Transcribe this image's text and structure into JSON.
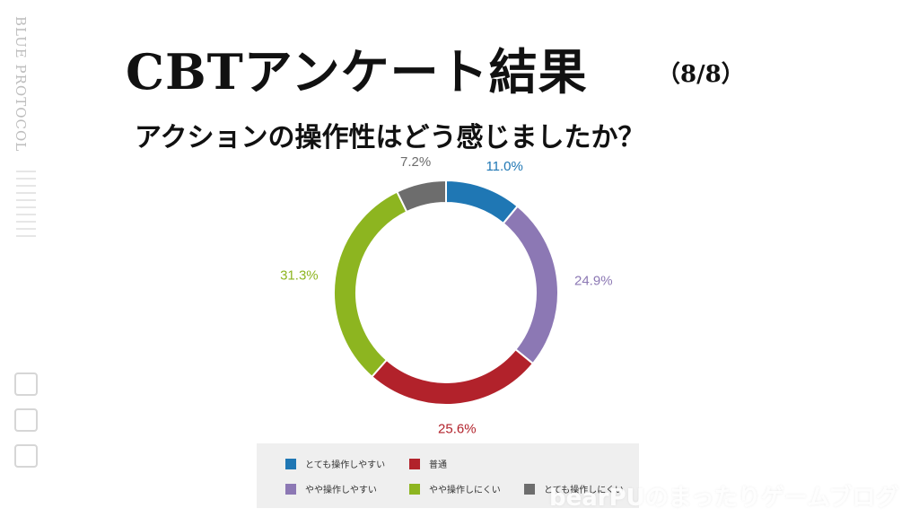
{
  "slide": {
    "side_logo": "BLUE PROTOCOL",
    "title": "CBTアンケート結果",
    "page": "（8/8）",
    "question": "アクションの操作性はどう感じましたか？",
    "watermark": "bearPUのまったりゲームブログ"
  },
  "chart_data": {
    "type": "pie",
    "donut": true,
    "title": "",
    "categories": [
      "とても操作しやすい",
      "やや操作しやすい",
      "普通",
      "やや操作しにくい",
      "とても操作しにくい"
    ],
    "values": [
      11.0,
      24.9,
      25.6,
      31.3,
      7.2
    ],
    "labels": [
      "11.0%",
      "24.9%",
      "25.6%",
      "31.3%",
      "7.2%"
    ],
    "colors": [
      "#1f77b4",
      "#8c78b4",
      "#b2222b",
      "#8db520",
      "#6d6d6d"
    ],
    "legend_placement": "bottom"
  },
  "legend": {
    "items": [
      {
        "label": "とても操作しやすい",
        "color": "#1f77b4"
      },
      {
        "label": "普通",
        "color": "#b2222b"
      },
      {
        "label": "やや操作しやすい",
        "color": "#8c78b4"
      },
      {
        "label": "やや操作しにくい",
        "color": "#8db520"
      },
      {
        "label": "とても操作しにくい",
        "color": "#6d6d6d"
      }
    ]
  }
}
